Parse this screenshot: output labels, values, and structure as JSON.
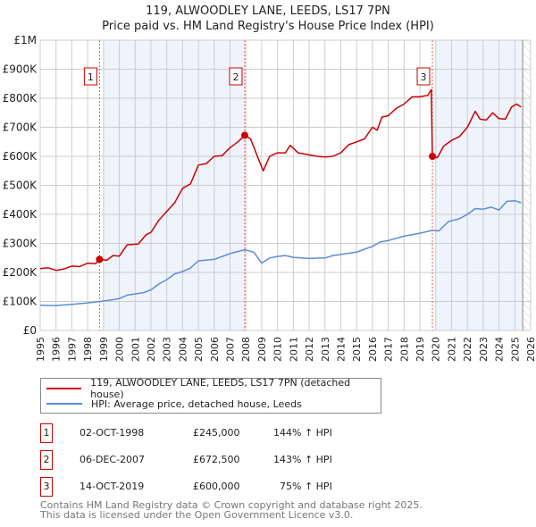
{
  "title_line1": "119, ALWOODLEY LANE, LEEDS, LS17 7PN",
  "title_line2": "Price paid vs. HM Land Registry's House Price Index (HPI)",
  "colors": {
    "property": "#cc0000",
    "hpi": "#5b8dd6",
    "shade": "#eef3fc",
    "grid": "#cccccc"
  },
  "chart_data": {
    "type": "line",
    "title": "119, ALWOODLEY LANE, LEEDS, LS17 7PN — Price paid vs. HM Land Registry's House Price Index (HPI)",
    "xlim": [
      1995,
      2026
    ],
    "ylim": [
      0,
      1000000
    ],
    "x_ticks": [
      "1995",
      "1996",
      "1997",
      "1998",
      "1999",
      "2000",
      "2001",
      "2002",
      "2003",
      "2004",
      "2005",
      "2006",
      "2007",
      "2008",
      "2009",
      "2010",
      "2011",
      "2012",
      "2013",
      "2014",
      "2015",
      "2016",
      "2017",
      "2018",
      "2019",
      "2020",
      "2021",
      "2022",
      "2023",
      "2024",
      "2025",
      "2026"
    ],
    "y_ticks": [
      {
        "v": 0,
        "label": "£0"
      },
      {
        "v": 100000,
        "label": "£100K"
      },
      {
        "v": 200000,
        "label": "£200K"
      },
      {
        "v": 300000,
        "label": "£300K"
      },
      {
        "v": 400000,
        "label": "£400K"
      },
      {
        "v": 500000,
        "label": "£500K"
      },
      {
        "v": 600000,
        "label": "£600K"
      },
      {
        "v": 700000,
        "label": "£700K"
      },
      {
        "v": 800000,
        "label": "£800K"
      },
      {
        "v": 900000,
        "label": "£900K"
      },
      {
        "v": 1000000,
        "label": "£1M"
      }
    ],
    "grid": true,
    "shaded_ranges": [
      [
        1999.0,
        2007.93
      ],
      [
        2020.0,
        2025.5
      ]
    ],
    "future_hatch_from": 2025.5,
    "series": [
      {
        "name": "119, ALWOODLEY LANE, LEEDS, LS17 7PN (detached house)",
        "key": "property",
        "x": [
          1995,
          1995.5,
          1996,
          1996.5,
          1997,
          1997.5,
          1998,
          1998.5,
          1998.75,
          1999.2,
          1999.6,
          2000,
          2000.5,
          2001.2,
          2001.7,
          2002,
          2002.5,
          2003,
          2003.5,
          2004,
          2004.5,
          2005,
          2005.5,
          2006,
          2006.5,
          2007,
          2007.5,
          2007.93,
          2008.3,
          2008.8,
          2009.1,
          2009.5,
          2010,
          2010.5,
          2010.8,
          2011.3,
          2012,
          2012.5,
          2013,
          2013.5,
          2014,
          2014.5,
          2015,
          2015.5,
          2016,
          2016.3,
          2016.6,
          2017,
          2017.5,
          2018,
          2018.5,
          2019,
          2019.5,
          2019.72,
          2019.79,
          2020.1,
          2020.5,
          2021,
          2021.5,
          2022,
          2022.5,
          2022.8,
          2023.2,
          2023.6,
          2024,
          2024.4,
          2024.8,
          2025.1,
          2025.4
        ],
        "y": [
          213000,
          216000,
          207000,
          212000,
          222000,
          220000,
          232000,
          230000,
          245000,
          242000,
          258000,
          256000,
          295000,
          298000,
          330000,
          338000,
          380000,
          410000,
          440000,
          490000,
          505000,
          570000,
          575000,
          600000,
          602000,
          630000,
          650000,
          672500,
          660000,
          590000,
          550000,
          600000,
          612000,
          612000,
          638000,
          612000,
          605000,
          600000,
          598000,
          600000,
          612000,
          640000,
          650000,
          660000,
          700000,
          690000,
          735000,
          740000,
          765000,
          780000,
          805000,
          805000,
          810000,
          830000,
          600000,
          595000,
          635000,
          655000,
          668000,
          700000,
          755000,
          728000,
          725000,
          750000,
          730000,
          728000,
          770000,
          780000,
          770000
        ]
      },
      {
        "name": "HPI: Average price, detached house, Leeds",
        "key": "hpi",
        "x": [
          1995,
          1996,
          1997,
          1998,
          1998.75,
          1999.5,
          2000,
          2000.5,
          2001.5,
          2002,
          2002.5,
          2003,
          2003.5,
          2004,
          2004.5,
          2005,
          2006,
          2007,
          2007.93,
          2008.5,
          2009,
          2009.5,
          2010,
          2010.5,
          2011,
          2012,
          2013,
          2013.5,
          2014,
          2015,
          2015.5,
          2016,
          2016.5,
          2017,
          2018,
          2019,
          2019.79,
          2020.2,
          2020.8,
          2021.5,
          2022,
          2022.5,
          2023,
          2023.5,
          2024,
          2024.5,
          2025,
          2025.4
        ],
        "y": [
          87000,
          86000,
          90000,
          95000,
          100000,
          105000,
          110000,
          122000,
          130000,
          140000,
          160000,
          175000,
          195000,
          203000,
          215000,
          240000,
          245000,
          265000,
          278000,
          270000,
          232000,
          250000,
          255000,
          258000,
          252000,
          248000,
          250000,
          258000,
          262000,
          270000,
          280000,
          290000,
          305000,
          310000,
          325000,
          335000,
          345000,
          343000,
          375000,
          385000,
          400000,
          420000,
          418000,
          425000,
          415000,
          445000,
          447000,
          440000
        ]
      }
    ],
    "annotations": [
      {
        "label": "1",
        "x": 1998.75,
        "y": 245000
      },
      {
        "label": "2",
        "x": 2007.93,
        "y": 672500
      },
      {
        "label": "3",
        "x": 2019.79,
        "y": 600000
      }
    ]
  },
  "legend": [
    {
      "label": "119, ALWOODLEY LANE, LEEDS, LS17 7PN (detached house)"
    },
    {
      "label": "HPI: Average price, detached house, Leeds"
    }
  ],
  "transactions": [
    {
      "num": "1",
      "date": "02-OCT-1998",
      "price": "£245,000",
      "hpi": "144% ↑ HPI"
    },
    {
      "num": "2",
      "date": "06-DEC-2007",
      "price": "£672,500",
      "hpi": "143% ↑ HPI"
    },
    {
      "num": "3",
      "date": "14-OCT-2019",
      "price": "£600,000",
      "hpi": "75% ↑ HPI"
    }
  ],
  "footer": {
    "line1": "Contains HM Land Registry data © Crown copyright and database right 2025.",
    "line2": "This data is licensed under the Open Government Licence v3.0."
  }
}
